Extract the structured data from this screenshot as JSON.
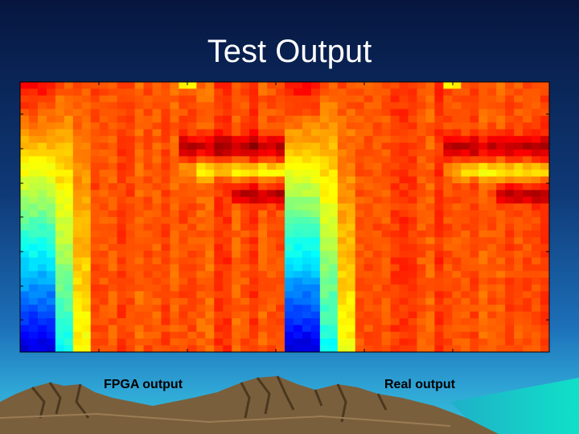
{
  "slide": {
    "title": "Test Output",
    "labels": [
      "FPGA output",
      "Real output"
    ]
  }
}
